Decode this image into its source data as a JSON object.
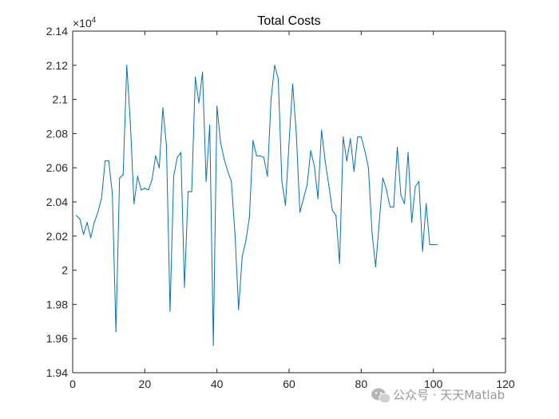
{
  "chart_data": {
    "type": "line",
    "title": "Total Costs",
    "xlabel": "",
    "ylabel": "",
    "xlim": [
      0,
      120
    ],
    "ylim": [
      19400,
      21400
    ],
    "x_ticks": [
      0,
      20,
      40,
      60,
      80,
      100,
      120
    ],
    "y_ticks": [
      19400,
      19600,
      19800,
      20000,
      20200,
      20400,
      20600,
      20800,
      21000,
      21200,
      21400
    ],
    "y_tick_labels": [
      "1.94",
      "1.96",
      "1.98",
      "2",
      "2.02",
      "2.04",
      "2.06",
      "2.08",
      "2.1",
      "2.12",
      "2.14"
    ],
    "y_exponent_base": "×10",
    "y_exponent_power": "4",
    "grid": false,
    "line_color": "#0072BD",
    "series": [
      {
        "x": [
          1,
          2,
          3,
          4,
          5,
          6,
          7,
          8,
          9,
          10,
          11,
          12,
          13,
          14,
          15,
          16,
          17,
          18,
          19,
          20,
          21,
          22,
          23,
          24,
          25,
          26,
          27,
          28,
          29,
          30,
          31,
          32,
          33,
          34,
          35,
          36,
          37,
          38,
          39,
          40,
          41,
          42,
          43,
          44,
          45,
          46,
          47,
          48,
          49,
          50,
          51,
          52,
          53,
          54,
          55,
          56,
          57,
          58,
          59,
          60,
          61,
          62,
          63,
          64,
          65,
          66,
          67,
          68,
          69,
          70,
          71,
          72,
          73,
          74,
          75,
          76,
          77,
          78,
          79,
          80,
          81,
          82,
          83,
          84,
          85,
          86,
          87,
          88,
          89,
          90,
          91,
          92,
          93,
          94,
          95,
          96,
          97,
          98,
          99,
          100,
          101
        ],
        "y": [
          20320,
          20300,
          20210,
          20280,
          20190,
          20280,
          20340,
          20420,
          20640,
          20640,
          20450,
          19640,
          20540,
          20560,
          21200,
          20860,
          20390,
          20550,
          20470,
          20480,
          20470,
          20530,
          20670,
          20600,
          20950,
          20730,
          19760,
          20550,
          20660,
          20690,
          19900,
          20460,
          20460,
          21130,
          20980,
          21160,
          20520,
          20850,
          19560,
          20960,
          20750,
          20650,
          20580,
          20520,
          20210,
          19770,
          20080,
          20170,
          20310,
          20760,
          20670,
          20670,
          20660,
          20550,
          21000,
          21200,
          21120,
          20520,
          20380,
          20750,
          21090,
          20800,
          20340,
          20420,
          20500,
          20700,
          20610,
          20420,
          20820,
          20640,
          20500,
          20350,
          20320,
          20040,
          20780,
          20640,
          20770,
          20580,
          20780,
          20780,
          20700,
          20600,
          20220,
          20020,
          20280,
          20540,
          20470,
          20370,
          20370,
          20720,
          20440,
          20390,
          20690,
          20280,
          20490,
          20520,
          20110,
          20390,
          20150,
          20150,
          20150
        ]
      }
    ]
  },
  "watermark": {
    "text": "公众号 · 天天Matlab",
    "icon": "wechat-icon"
  }
}
